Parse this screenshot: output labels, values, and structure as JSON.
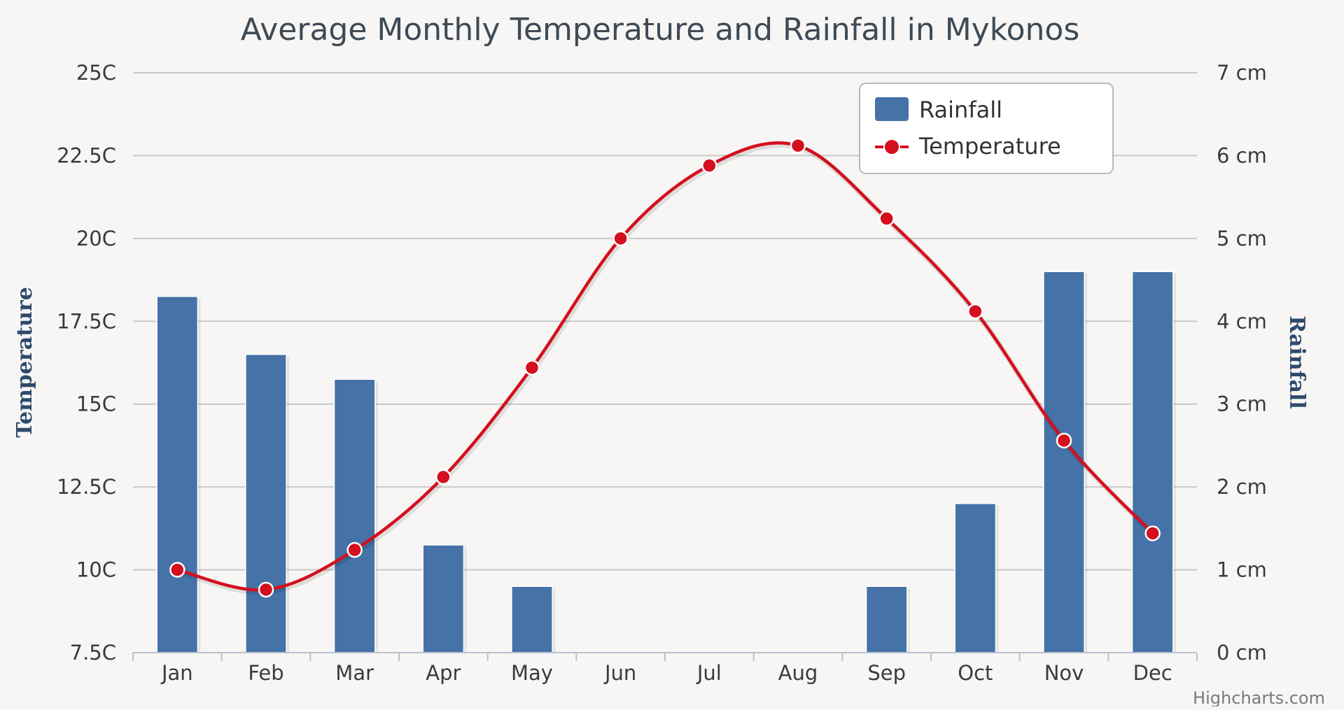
{
  "chart_data": {
    "type": "bar+line",
    "title": "Average Monthly Temperature and Rainfall in Mykonos",
    "categories": [
      "Jan",
      "Feb",
      "Mar",
      "Apr",
      "May",
      "Jun",
      "Jul",
      "Aug",
      "Sep",
      "Oct",
      "Nov",
      "Dec"
    ],
    "series": [
      {
        "name": "Rainfall",
        "type": "column",
        "axis": "right",
        "unit": "cm",
        "color": "#4572a7",
        "values": [
          4.3,
          3.6,
          3.3,
          1.3,
          0.8,
          0,
          0,
          0,
          0.8,
          1.8,
          4.6,
          4.6
        ]
      },
      {
        "name": "Temperature",
        "type": "spline",
        "axis": "left",
        "unit": "C",
        "color": "#d40f1e",
        "values": [
          10.0,
          9.4,
          10.6,
          12.8,
          16.1,
          20.0,
          22.2,
          22.8,
          20.6,
          17.8,
          13.9,
          11.1
        ]
      }
    ],
    "y_left": {
      "title": "Temperature",
      "min": 7.5,
      "max": 25,
      "ticks": [
        "25C",
        "22.5C",
        "20C",
        "17.5C",
        "15C",
        "12.5C",
        "10C",
        "7.5C"
      ]
    },
    "y_right": {
      "title": "Rainfall",
      "min": 0,
      "max": 7,
      "ticks": [
        "7 cm",
        "6 cm",
        "5 cm",
        "4 cm",
        "3 cm",
        "2 cm",
        "1 cm",
        "0 cm"
      ]
    },
    "legend": {
      "placement": "top-right",
      "items": [
        "Rainfall",
        "Temperature"
      ]
    },
    "grid": true,
    "credit": "Highcharts.com"
  }
}
